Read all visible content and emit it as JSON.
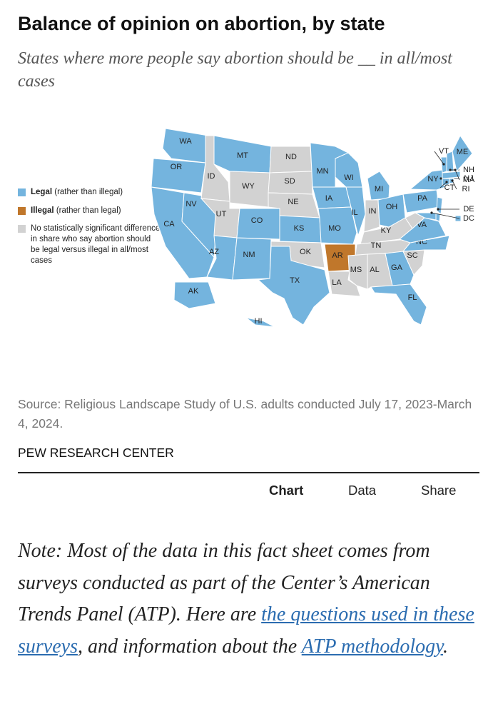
{
  "header": {
    "title": "Balance of opinion on abortion, by state",
    "subtitle": "States where more people say abortion should be __ in all/most cases"
  },
  "legend": [
    {
      "key": "legal",
      "name": "Legal",
      "qualifier": "(rather than illegal)",
      "color": "#74b4de"
    },
    {
      "key": "illegal",
      "name": "Illegal",
      "qualifier": "(rather than legal)",
      "color": "#c0772b"
    },
    {
      "key": "none",
      "name": "No statistically significant difference in share who say abortion should be legal versus illegal in all/most cases",
      "color": "#d2d2d2"
    }
  ],
  "map": {
    "states": [
      {
        "label": "WA",
        "status": "legal"
      },
      {
        "label": "OR",
        "status": "legal"
      },
      {
        "label": "CA",
        "status": "legal"
      },
      {
        "label": "NV",
        "status": "legal"
      },
      {
        "label": "ID",
        "status": "none"
      },
      {
        "label": "MT",
        "status": "legal"
      },
      {
        "label": "WY",
        "status": "none"
      },
      {
        "label": "UT",
        "status": "none"
      },
      {
        "label": "AZ",
        "status": "legal"
      },
      {
        "label": "NM",
        "status": "legal"
      },
      {
        "label": "CO",
        "status": "legal"
      },
      {
        "label": "ND",
        "status": "none"
      },
      {
        "label": "SD",
        "status": "none"
      },
      {
        "label": "NE",
        "status": "none"
      },
      {
        "label": "KS",
        "status": "legal"
      },
      {
        "label": "OK",
        "status": "none"
      },
      {
        "label": "TX",
        "status": "legal"
      },
      {
        "label": "MN",
        "status": "legal"
      },
      {
        "label": "IA",
        "status": "legal"
      },
      {
        "label": "MO",
        "status": "legal"
      },
      {
        "label": "AR",
        "status": "illegal"
      },
      {
        "label": "LA",
        "status": "none"
      },
      {
        "label": "WI",
        "status": "legal"
      },
      {
        "label": "IL",
        "status": "legal"
      },
      {
        "label": "MI",
        "status": "legal"
      },
      {
        "label": "IN",
        "status": "none"
      },
      {
        "label": "OH",
        "status": "legal"
      },
      {
        "label": "KY",
        "status": "none"
      },
      {
        "label": "TN",
        "status": "none"
      },
      {
        "label": "MS",
        "status": "none"
      },
      {
        "label": "AL",
        "status": "none"
      },
      {
        "label": "GA",
        "status": "legal"
      },
      {
        "label": "FL",
        "status": "legal"
      },
      {
        "label": "SC",
        "status": "none"
      },
      {
        "label": "NC",
        "status": "legal"
      },
      {
        "label": "VA",
        "status": "legal"
      },
      {
        "label": "WV",
        "status": "none"
      },
      {
        "label": "PA",
        "status": "legal"
      },
      {
        "label": "NY",
        "status": "legal"
      },
      {
        "label": "NJ",
        "status": "legal"
      },
      {
        "label": "DE",
        "status": "legal"
      },
      {
        "label": null,
        "status": "legal"
      },
      {
        "label": "VT",
        "status": "legal"
      },
      {
        "label": "NH",
        "status": "legal"
      },
      {
        "label": "ME",
        "status": "legal"
      },
      {
        "label": "MA",
        "status": "legal"
      },
      {
        "label": "CT",
        "status": "legal"
      },
      {
        "label": "RI",
        "status": "legal"
      },
      {
        "label": "DC",
        "status": "legal"
      },
      {
        "label": "AK",
        "status": "legal"
      },
      {
        "label": "HI",
        "status": "legal"
      }
    ]
  },
  "source": "Source: Religious Landscape Study of U.S. adults conducted July 17, 2023-March 4, 2024.",
  "brand": "PEW RESEARCH CENTER",
  "tabs": [
    "Chart",
    "Data",
    "Share"
  ],
  "note": {
    "text1": "Note: Most of the data in this fact sheet comes from surveys conducted as part of the Center’s American Trends Panel (ATP). Here are ",
    "link1": "the questions used in these surveys",
    "text2": ", and information about the ",
    "link2": "ATP methodology",
    "text3": "."
  }
}
